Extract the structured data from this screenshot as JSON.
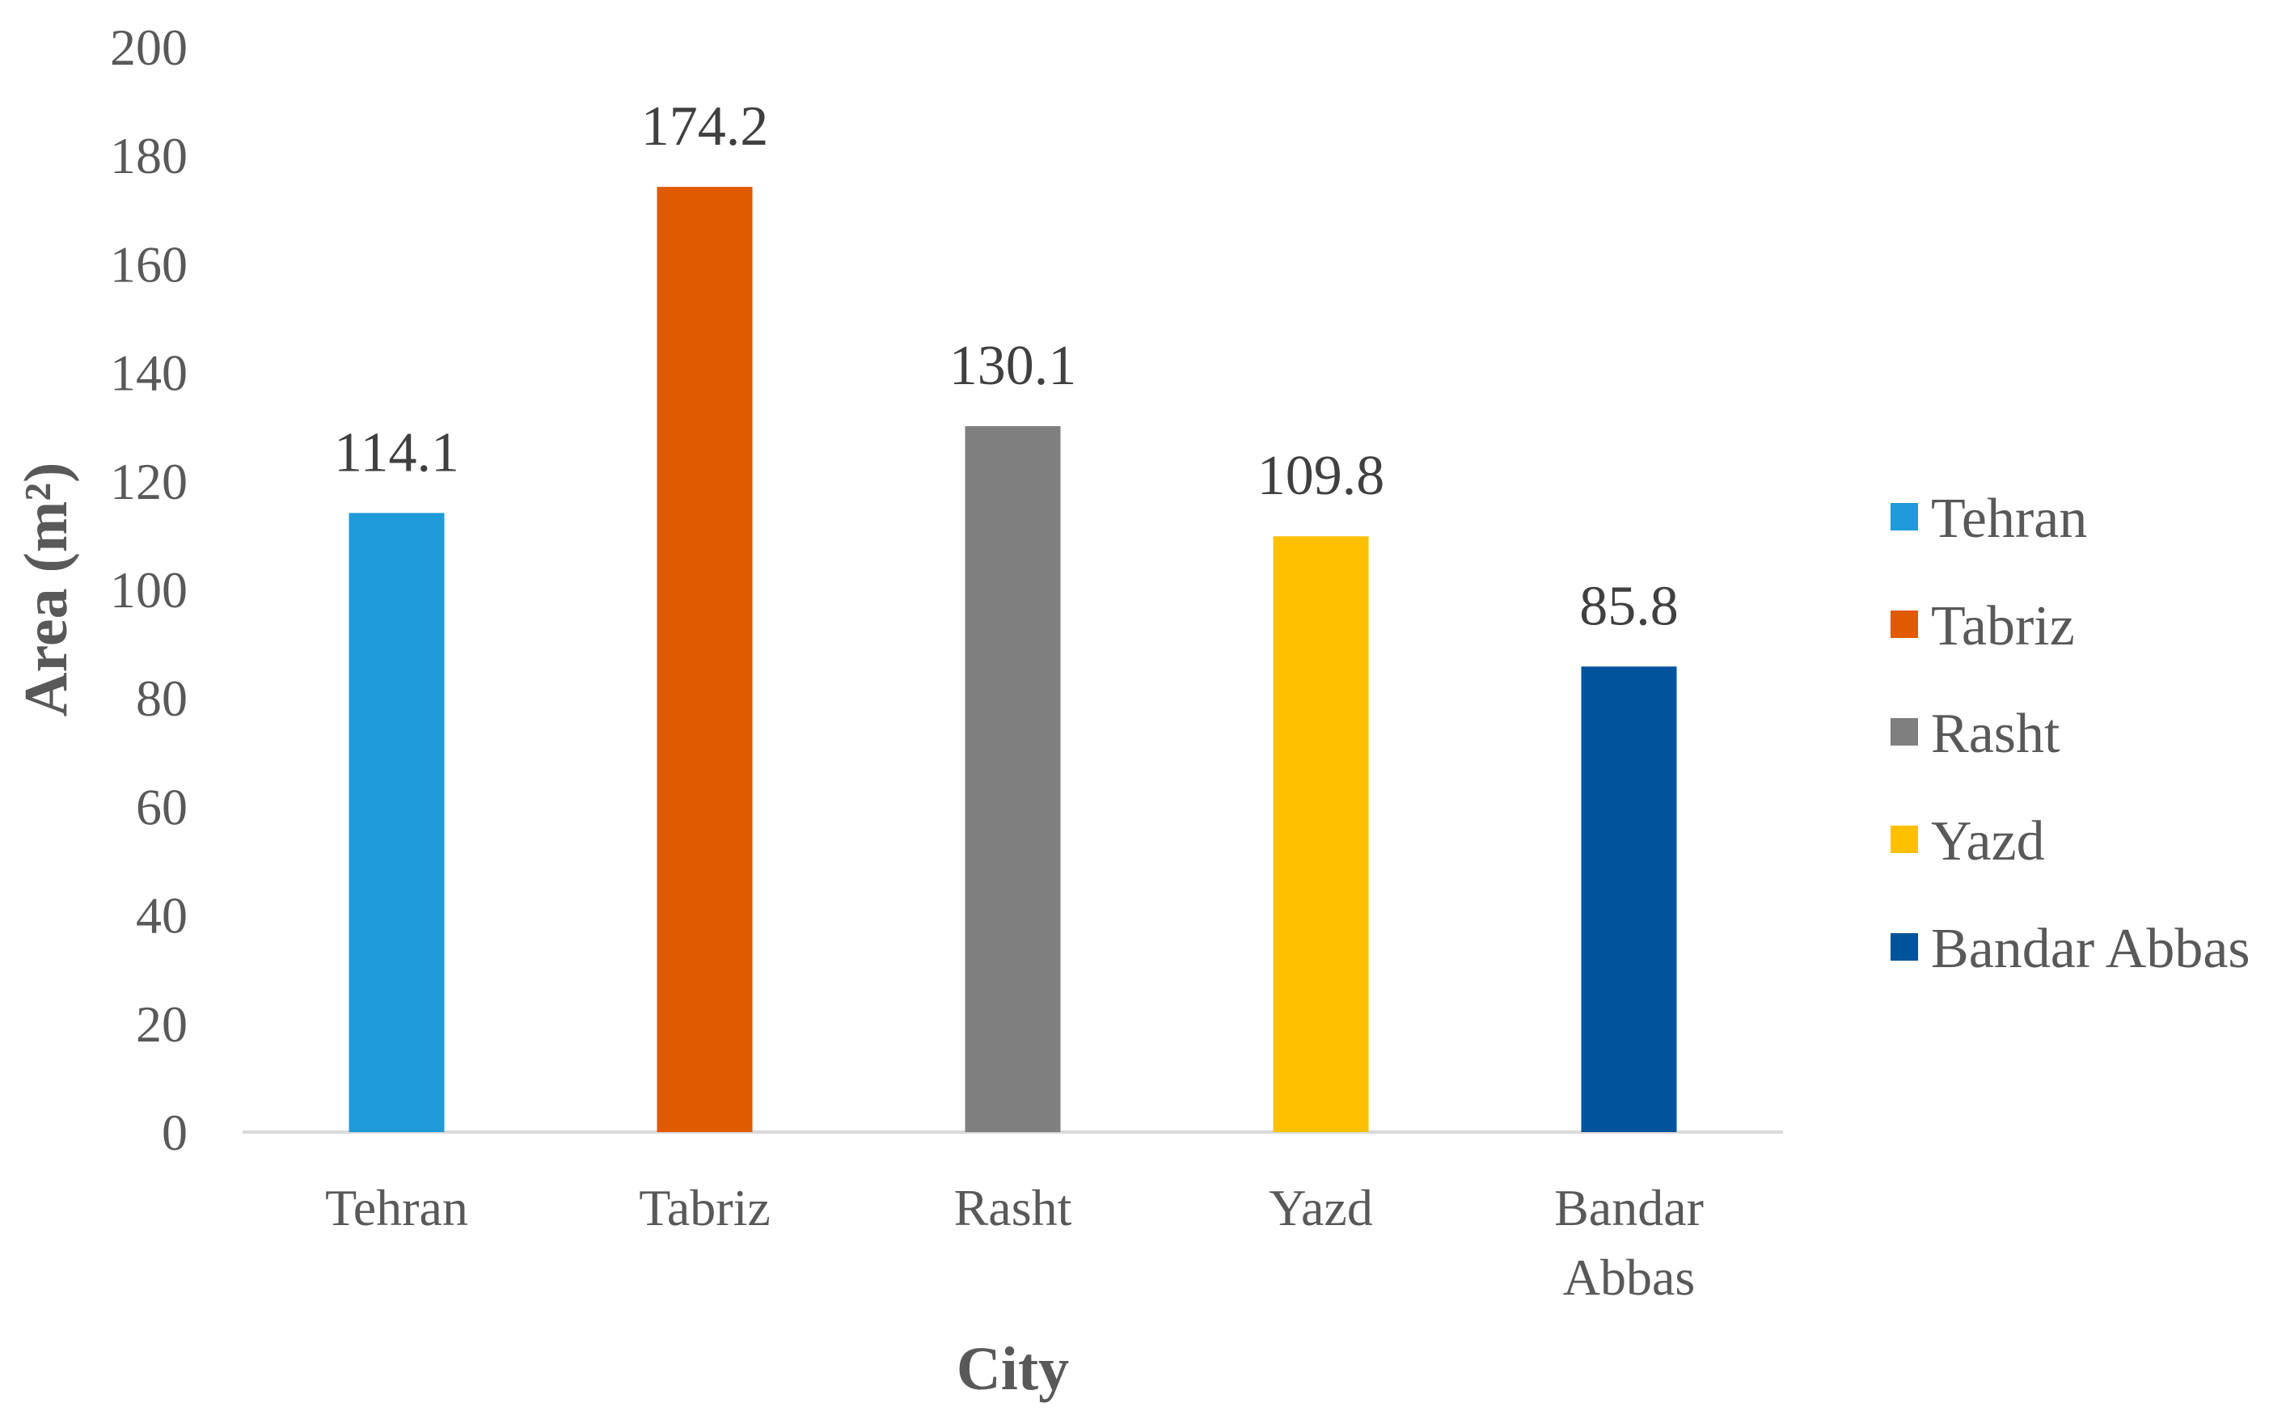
{
  "chart_data": {
    "type": "bar",
    "categories": [
      "Tehran",
      "Tabriz",
      "Rasht",
      "Yazd",
      "Bandar Abbas"
    ],
    "category_labels": [
      [
        "Tehran"
      ],
      [
        "Tabriz"
      ],
      [
        "Rasht"
      ],
      [
        "Yazd"
      ],
      [
        "Bandar",
        "Abbas"
      ]
    ],
    "values": [
      114.1,
      174.2,
      130.1,
      109.8,
      85.8
    ],
    "data_labels": [
      "114.1",
      "174.2",
      "130.1",
      "109.8",
      "85.8"
    ],
    "colors": [
      "#1f9bd9",
      "#e05a00",
      "#7f7f7f",
      "#ffc000",
      "#00549b"
    ],
    "title": "",
    "xlabel": "City",
    "ylabel": "Area (m²)",
    "ylim": [
      0,
      200
    ],
    "yticks": [
      0,
      20,
      40,
      60,
      80,
      100,
      120,
      140,
      160,
      180,
      200
    ],
    "grid": false,
    "legend": {
      "position": "right",
      "entries": [
        "Tehran",
        "Tabriz",
        "Rasht",
        "Yazd",
        "Bandar Abbas"
      ]
    }
  }
}
